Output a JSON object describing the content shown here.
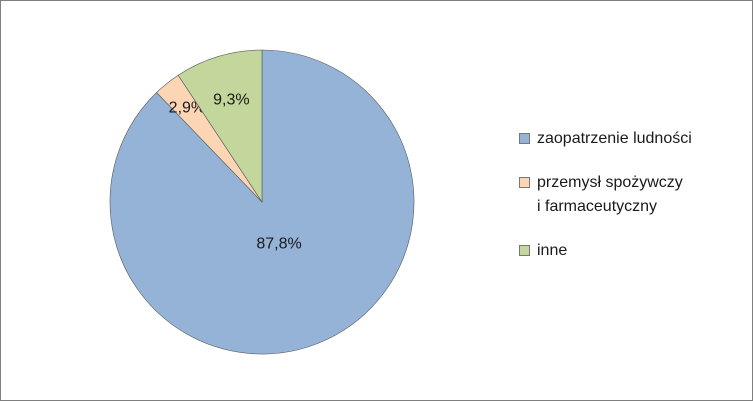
{
  "chart_data": {
    "type": "pie",
    "categories": [
      "zaopatrzenie ludności",
      "przemysł spożywczy\ni farmaceutyczny",
      "inne"
    ],
    "values": [
      87.8,
      2.9,
      9.3
    ],
    "value_labels": [
      "87,8%",
      "2,9%",
      "9,3%"
    ],
    "colors": [
      "#95b3d7",
      "#fcd5b5",
      "#c3d69b"
    ],
    "legend": "right"
  }
}
